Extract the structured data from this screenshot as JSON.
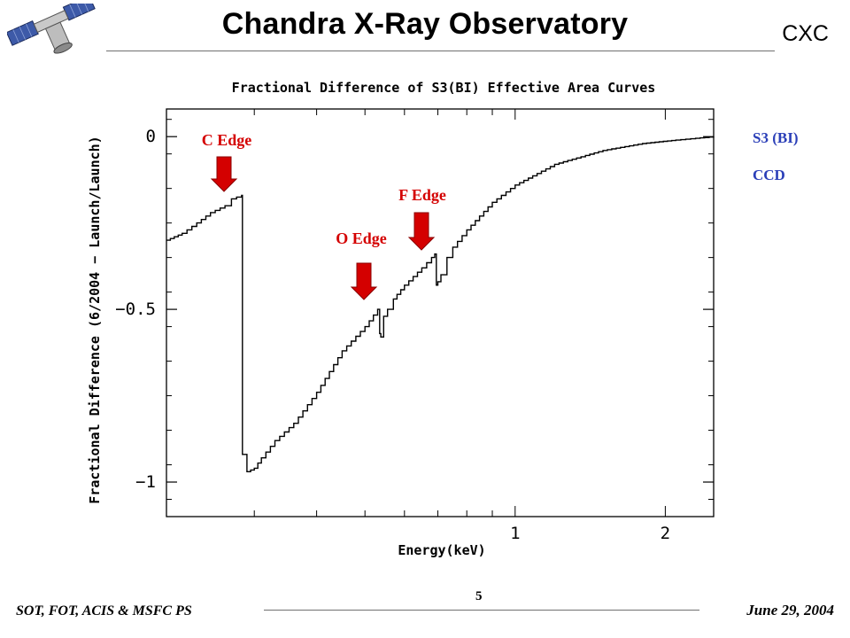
{
  "header": {
    "title": "Chandra X-Ray Observatory",
    "right_label": "CXC"
  },
  "footer": {
    "left": "SOT, FOT, ACIS & MSFC PS",
    "page": "5",
    "date": "June 29, 2004"
  },
  "legend": {
    "line1": "S3 (BI)",
    "line2": "CCD"
  },
  "colors": {
    "annotation_red": "#d40000",
    "legend_blue": "#2b3fb8"
  },
  "chart_data": {
    "type": "line",
    "title": "Fractional Difference of S3(BI) Effective Area Curves",
    "xlabel": "Energy(keV)",
    "ylabel": "Fractional Difference (6/2004 − Launch/Launch)",
    "x_scale": "log",
    "xlim": [
      0.2,
      2.5
    ],
    "ylim": [
      -1.1,
      0.08
    ],
    "x_tick_labels": [
      {
        "value": 1,
        "label": "1"
      },
      {
        "value": 2,
        "label": "2"
      }
    ],
    "y_tick_labels": [
      {
        "value": 0,
        "label": "0"
      },
      {
        "value": -0.5,
        "label": "−0.5"
      },
      {
        "value": -1,
        "label": "−1"
      }
    ],
    "grid": false,
    "series": [
      {
        "x": [
          0.2,
          0.215,
          0.23,
          0.245,
          0.262,
          0.27,
          0.283,
          0.284,
          0.29,
          0.3,
          0.31,
          0.33,
          0.36,
          0.4,
          0.45,
          0.5,
          0.53,
          0.535,
          0.538,
          0.545,
          0.555,
          0.57,
          0.6,
          0.65,
          0.68,
          0.69,
          0.695,
          0.7,
          0.71,
          0.73,
          0.75,
          0.8,
          0.9,
          1.0,
          1.2,
          1.5,
          1.8,
          2.1,
          2.3,
          2.5
        ],
        "y": [
          -0.3,
          -0.28,
          -0.25,
          -0.22,
          -0.2,
          -0.18,
          -0.17,
          -0.92,
          -0.97,
          -0.96,
          -0.93,
          -0.88,
          -0.83,
          -0.74,
          -0.62,
          -0.55,
          -0.5,
          -0.57,
          -0.58,
          -0.52,
          -0.5,
          -0.47,
          -0.43,
          -0.38,
          -0.35,
          -0.34,
          -0.43,
          -0.42,
          -0.4,
          -0.35,
          -0.32,
          -0.27,
          -0.19,
          -0.14,
          -0.08,
          -0.04,
          -0.02,
          -0.01,
          -0.005,
          0.0
        ]
      }
    ],
    "annotations": [
      {
        "label": "C Edge",
        "x": 0.284
      },
      {
        "label": "O Edge",
        "x": 0.535
      },
      {
        "label": "F Edge",
        "x": 0.695
      }
    ]
  }
}
